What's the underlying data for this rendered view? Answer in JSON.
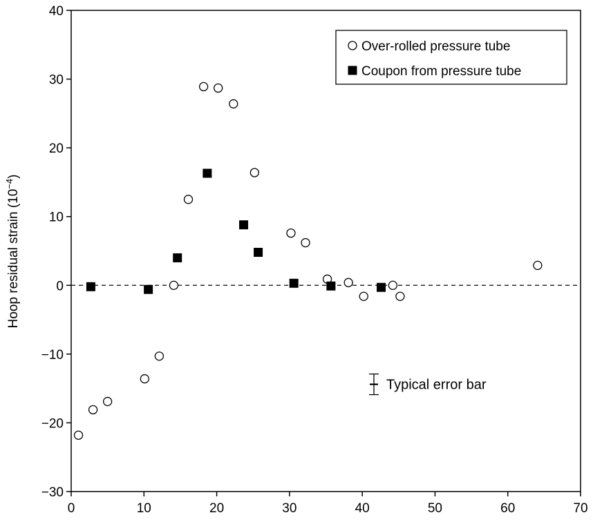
{
  "chart_data": {
    "type": "scatter",
    "xlabel": "",
    "ylabel": "Hoop residual strain (10",
    "ylabel_sup": "−4",
    "ylabel_end": ")",
    "xlim": [
      0,
      70
    ],
    "ylim": [
      -30,
      40
    ],
    "xticks": [
      0,
      10,
      20,
      30,
      40,
      50,
      60,
      70
    ],
    "yticks": [
      -30,
      -20,
      -10,
      0,
      10,
      20,
      30,
      40
    ],
    "xtick_labels": [
      "0",
      "10",
      "20",
      "30",
      "40",
      "50",
      "60",
      "70"
    ],
    "ytick_labels": [
      "−30",
      "−20",
      "−10",
      "0",
      "10",
      "20",
      "30",
      "40"
    ],
    "grid": false,
    "reference_line": {
      "y": 0,
      "style": "dashed"
    },
    "legend": {
      "position": "top-right"
    },
    "series": [
      {
        "name": "Over-rolled pressure tube",
        "marker": "open-circle",
        "points": [
          [
            1,
            -21.8
          ],
          [
            3,
            -18.1
          ],
          [
            5,
            -16.9
          ],
          [
            10.1,
            -13.6
          ],
          [
            12.1,
            -10.3
          ],
          [
            14.1,
            0
          ],
          [
            16.1,
            12.5
          ],
          [
            18.2,
            28.9
          ],
          [
            20.2,
            28.7
          ],
          [
            22.3,
            26.4
          ],
          [
            25.2,
            16.4
          ],
          [
            30.2,
            7.6
          ],
          [
            32.2,
            6.2
          ],
          [
            35.2,
            0.9
          ],
          [
            38.1,
            0.4
          ],
          [
            40.2,
            -1.6
          ],
          [
            44.2,
            0
          ],
          [
            45.2,
            -1.6
          ],
          [
            64.1,
            2.9
          ]
        ]
      },
      {
        "name": "Coupon from pressure tube",
        "marker": "filled-square",
        "points": [
          [
            2.7,
            -0.2
          ],
          [
            10.6,
            -0.6
          ],
          [
            14.6,
            4
          ],
          [
            18.7,
            16.3
          ],
          [
            23.7,
            8.8
          ],
          [
            25.7,
            4.8
          ],
          [
            30.6,
            0.3
          ],
          [
            35.7,
            -0.1
          ],
          [
            42.6,
            -0.3
          ]
        ]
      }
    ],
    "annotation": {
      "label": "Typical error bar",
      "x": 41.6,
      "y": -14.4,
      "error": 1.5
    }
  }
}
